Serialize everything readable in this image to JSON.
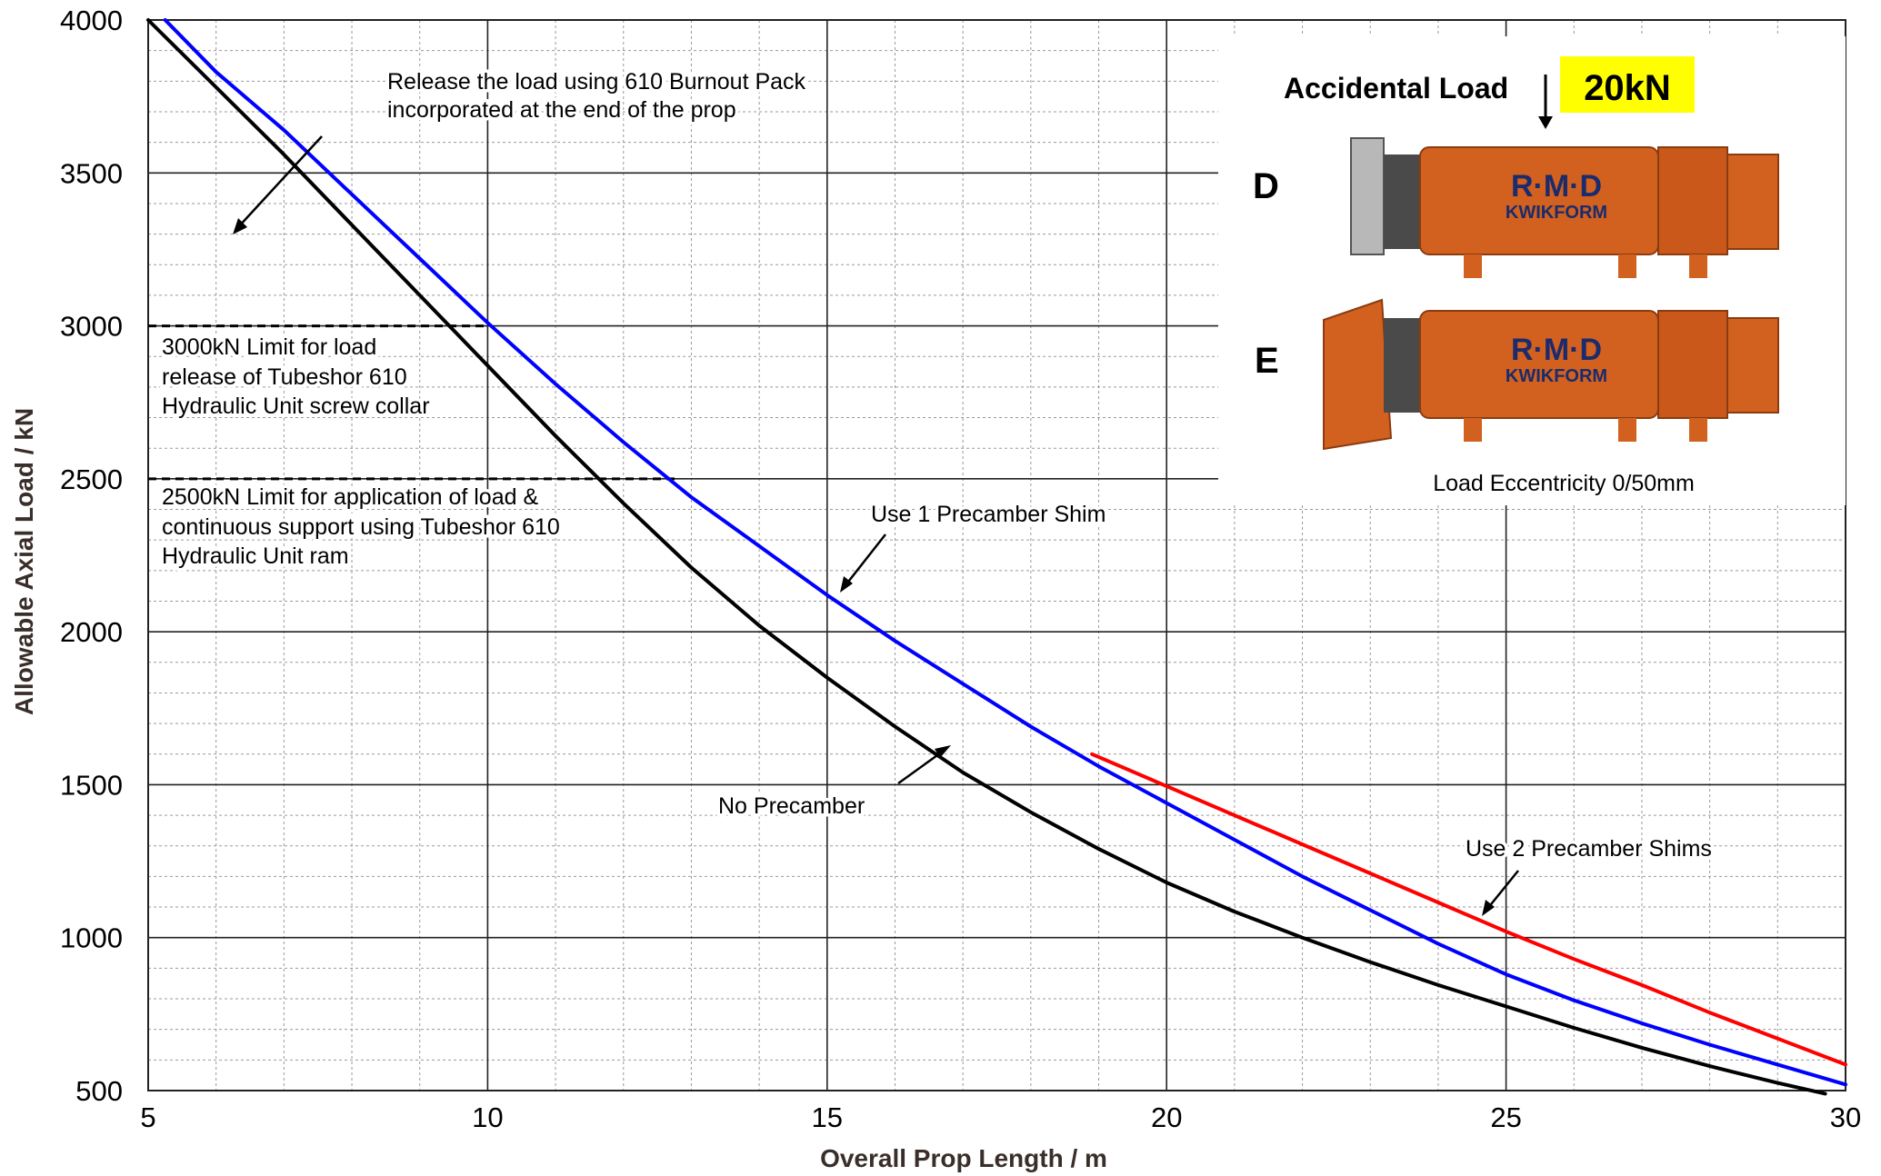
{
  "chart_data": {
    "type": "line",
    "xlabel": "Overall Prop Length / m",
    "ylabel": "Allowable Axial Load / kN",
    "xlim": [
      5,
      30
    ],
    "ylim": [
      500,
      4000
    ],
    "x_major_ticks": [
      5,
      10,
      15,
      20,
      25,
      30
    ],
    "y_major_ticks": [
      500,
      1000,
      1500,
      2000,
      2500,
      3000,
      3500,
      4000
    ],
    "x_minor_step": 1,
    "y_minor_step": 100,
    "grid": true,
    "series": [
      {
        "name": "No Precamber",
        "color": "#000000",
        "x": [
          5,
          6,
          7,
          8,
          9,
          10,
          11,
          12,
          13,
          14,
          15,
          16,
          17,
          18,
          19,
          20,
          21,
          22,
          23,
          24,
          25,
          26,
          27,
          28,
          29,
          29.7
        ],
        "y": [
          4000,
          3780,
          3560,
          3330,
          3100,
          2870,
          2640,
          2420,
          2210,
          2020,
          1850,
          1690,
          1540,
          1410,
          1290,
          1180,
          1085,
          1000,
          920,
          845,
          775,
          705,
          640,
          580,
          525,
          490
        ]
      },
      {
        "name": "Use 1 Precamber Shim",
        "color": "#0000ff",
        "x": [
          5.25,
          6,
          7,
          8,
          9,
          10,
          11,
          12,
          13,
          14,
          15,
          16,
          17,
          18,
          19,
          20,
          21,
          22,
          23,
          24,
          25,
          26,
          27,
          28,
          29,
          30
        ],
        "y": [
          4000,
          3830,
          3640,
          3430,
          3220,
          3010,
          2810,
          2620,
          2440,
          2280,
          2120,
          1970,
          1830,
          1690,
          1560,
          1440,
          1320,
          1200,
          1090,
          980,
          880,
          795,
          720,
          650,
          585,
          520
        ]
      },
      {
        "name": "Use 2 Precamber Shims",
        "color": "#ff0000",
        "x": [
          18.9,
          20,
          21,
          22,
          23,
          24,
          25,
          26,
          27,
          28,
          29,
          30
        ],
        "y": [
          1600,
          1495,
          1400,
          1305,
          1210,
          1115,
          1020,
          930,
          845,
          755,
          670,
          585
        ]
      }
    ],
    "reference_lines": [
      {
        "label": "3000kN Limit for load release of Tubeshor 610 Hydraulic Unit screw collar",
        "y": 3000,
        "x_end": 10
      },
      {
        "label": "2500kN Limit for application of load & continuous support using Tubeshor 610 Hydraulic Unit ram",
        "y": 2500,
        "x_end": 12.8
      }
    ]
  },
  "annotations": {
    "burnout": [
      "Release the load using 610 Burnout Pack",
      "incorporated at the end of the prop"
    ],
    "limit3000": [
      "3000kN Limit for load",
      "release of Tubeshor 610",
      "Hydraulic Unit screw collar"
    ],
    "limit2500": [
      "2500kN Limit for application of load &",
      "continuous support  using Tubeshor 610",
      "Hydraulic Unit ram"
    ],
    "one_shim": "Use 1 Precamber Shim",
    "no_precamber": "No Precamber",
    "two_shims": "Use 2 Precamber Shims"
  },
  "inset": {
    "accidental_label": "Accidental Load",
    "accidental_value": "20kN",
    "badge_color": "#ffff00",
    "prop_color": "#d2611f",
    "variant_d": "D",
    "variant_e": "E",
    "brand_main": "R·M·D",
    "brand_sub": "KWIKFORM",
    "eccentricity": "Load Eccentricity 0/50mm"
  }
}
